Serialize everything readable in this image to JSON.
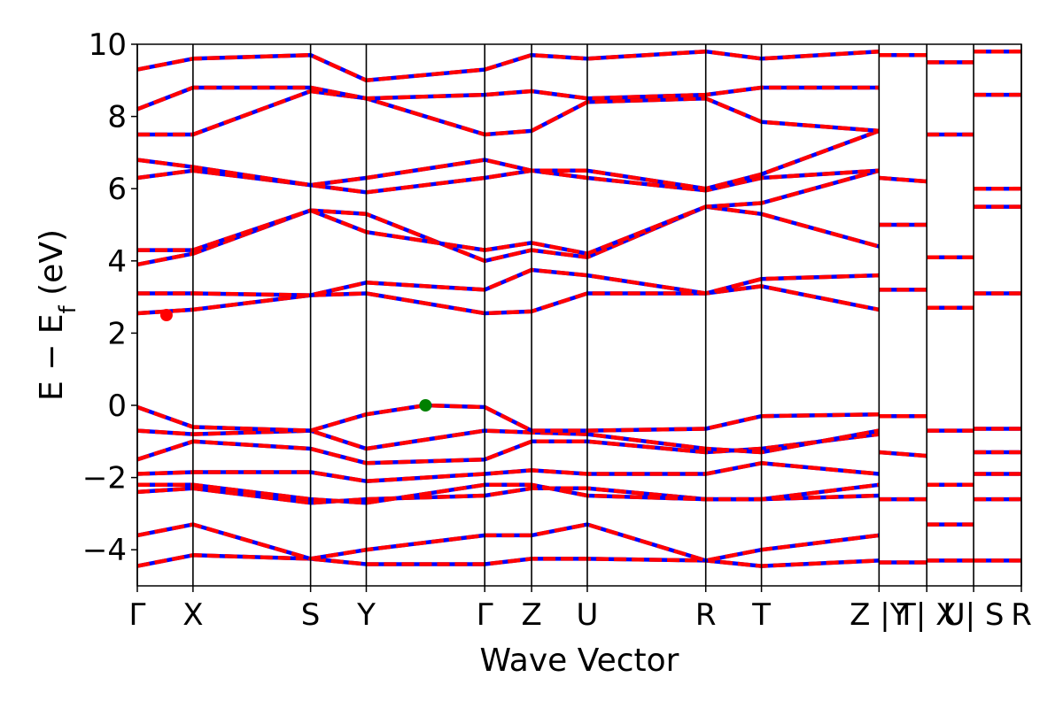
{
  "chart_data": {
    "type": "line",
    "xlabel": "Wave Vector",
    "ylabel": "E − E",
    "ylabel_sub": "f",
    "ylabel_unit": " (eV)",
    "ylim": [
      -5,
      10
    ],
    "yticks": [
      -4,
      -2,
      0,
      2,
      4,
      6,
      8,
      10
    ],
    "ytick_labels": [
      "−4",
      "−2",
      "0",
      "2",
      "4",
      "6",
      "8",
      "10"
    ],
    "xlim": [
      0,
      1
    ],
    "kpoints": [
      {
        "pos": 0.0,
        "label": "Γ"
      },
      {
        "pos": 0.063,
        "label": "X"
      },
      {
        "pos": 0.196,
        "label": "S"
      },
      {
        "pos": 0.259,
        "label": "Y"
      },
      {
        "pos": 0.393,
        "label": "Γ"
      },
      {
        "pos": 0.446,
        "label": "Z"
      },
      {
        "pos": 0.509,
        "label": "U"
      },
      {
        "pos": 0.643,
        "label": "R"
      },
      {
        "pos": 0.706,
        "label": "T"
      },
      {
        "pos": 0.839,
        "label": "Z |Y"
      },
      {
        "pos": 0.893,
        "label": "T| X"
      },
      {
        "pos": 0.946,
        "label": "U| S"
      },
      {
        "pos": 1.0,
        "label": "R"
      }
    ],
    "cbm": {
      "x": 0.033,
      "y": 2.5,
      "color": "#ff0000"
    },
    "vbm": {
      "x": 0.326,
      "y": 0.0,
      "color": "#008000"
    },
    "bands": [
      {
        "x": [
          0,
          0.063,
          0.196,
          0.259,
          0.393,
          0.446,
          0.509,
          0.643,
          0.706,
          0.839
        ],
        "y": [
          -4.45,
          -4.15,
          -4.25,
          -4.4,
          -4.4,
          -4.25,
          -4.25,
          -4.3,
          -4.45,
          -4.3
        ]
      },
      {
        "x": [
          0,
          0.063,
          0.196,
          0.259,
          0.393,
          0.446,
          0.509,
          0.643,
          0.706,
          0.839
        ],
        "y": [
          -3.6,
          -3.3,
          -4.25,
          -4.0,
          -3.6,
          -3.6,
          -3.3,
          -4.3,
          -4.0,
          -3.6
        ]
      },
      {
        "x": [
          0,
          0.063,
          0.196,
          0.259,
          0.393,
          0.446,
          0.509,
          0.643,
          0.706,
          0.839
        ],
        "y": [
          -2.4,
          -2.3,
          -2.7,
          -2.6,
          -2.5,
          -2.3,
          -2.3,
          -2.6,
          -2.6,
          -2.5
        ]
      },
      {
        "x": [
          0,
          0.063,
          0.196,
          0.259,
          0.393,
          0.446,
          0.509,
          0.643,
          0.706,
          0.839
        ],
        "y": [
          -2.2,
          -2.2,
          -2.6,
          -2.7,
          -2.2,
          -2.2,
          -2.5,
          -2.6,
          -2.6,
          -2.2
        ]
      },
      {
        "x": [
          0,
          0.063,
          0.196,
          0.259,
          0.393,
          0.446,
          0.509,
          0.643,
          0.706,
          0.839
        ],
        "y": [
          -1.9,
          -1.85,
          -1.85,
          -2.1,
          -1.9,
          -1.8,
          -1.9,
          -1.9,
          -1.6,
          -1.9
        ]
      },
      {
        "x": [
          0,
          0.063,
          0.196,
          0.259,
          0.393,
          0.446,
          0.509,
          0.643,
          0.706,
          0.839
        ],
        "y": [
          -1.5,
          -1.0,
          -1.2,
          -1.6,
          -1.5,
          -1.0,
          -1.0,
          -1.3,
          -1.2,
          -0.8
        ]
      },
      {
        "x": [
          0,
          0.063,
          0.196,
          0.259,
          0.393,
          0.446,
          0.509,
          0.643,
          0.706,
          0.839
        ],
        "y": [
          -0.7,
          -0.8,
          -0.7,
          -1.2,
          -0.7,
          -0.75,
          -0.8,
          -1.2,
          -1.3,
          -0.7
        ]
      },
      {
        "x": [
          0,
          0.063,
          0.196,
          0.259,
          0.326,
          0.393,
          0.446,
          0.509,
          0.643,
          0.706,
          0.839
        ],
        "y": [
          -0.05,
          -0.6,
          -0.7,
          -0.25,
          0.0,
          -0.05,
          -0.7,
          -0.7,
          -0.65,
          -0.3,
          -0.25
        ]
      },
      {
        "x": [
          0,
          0.063,
          0.196,
          0.259,
          0.393,
          0.446,
          0.509,
          0.643,
          0.706,
          0.839
        ],
        "y": [
          2.55,
          2.65,
          3.05,
          3.1,
          2.55,
          2.6,
          3.1,
          3.1,
          3.3,
          2.65
        ]
      },
      {
        "x": [
          0,
          0.063,
          0.196,
          0.259,
          0.393,
          0.446,
          0.509,
          0.643,
          0.706,
          0.839
        ],
        "y": [
          3.1,
          3.1,
          3.05,
          3.4,
          3.2,
          3.75,
          3.6,
          3.1,
          3.5,
          3.6
        ]
      },
      {
        "x": [
          0,
          0.063,
          0.196,
          0.259,
          0.393,
          0.446,
          0.509,
          0.643,
          0.706,
          0.839
        ],
        "y": [
          3.9,
          4.2,
          5.4,
          5.3,
          4.0,
          4.3,
          4.1,
          5.5,
          5.3,
          4.4
        ]
      },
      {
        "x": [
          0,
          0.063,
          0.196,
          0.259,
          0.393,
          0.446,
          0.509,
          0.643,
          0.706,
          0.839
        ],
        "y": [
          4.3,
          4.3,
          5.4,
          4.8,
          4.3,
          4.5,
          4.2,
          5.5,
          5.6,
          6.5
        ]
      },
      {
        "x": [
          0,
          0.063,
          0.196,
          0.259,
          0.393,
          0.446,
          0.509,
          0.643,
          0.706,
          0.839
        ],
        "y": [
          6.3,
          6.5,
          6.1,
          5.9,
          6.3,
          6.5,
          6.3,
          5.95,
          6.3,
          6.5
        ]
      },
      {
        "x": [
          0,
          0.063,
          0.196,
          0.259,
          0.393,
          0.446,
          0.509,
          0.643,
          0.706,
          0.839
        ],
        "y": [
          6.8,
          6.6,
          6.1,
          6.3,
          6.8,
          6.5,
          6.5,
          6.0,
          6.4,
          7.6
        ]
      },
      {
        "x": [
          0,
          0.063,
          0.196,
          0.259,
          0.393,
          0.446,
          0.509,
          0.643,
          0.706,
          0.839
        ],
        "y": [
          7.5,
          7.5,
          8.7,
          8.5,
          7.5,
          7.6,
          8.4,
          8.5,
          7.85,
          7.6
        ]
      },
      {
        "x": [
          0,
          0.063,
          0.196,
          0.259,
          0.393,
          0.446,
          0.509,
          0.643,
          0.706,
          0.839
        ],
        "y": [
          8.2,
          8.8,
          8.8,
          8.5,
          8.6,
          8.7,
          8.5,
          8.6,
          8.8,
          8.8
        ]
      },
      {
        "x": [
          0,
          0.063,
          0.196,
          0.259,
          0.393,
          0.446,
          0.509,
          0.643,
          0.706,
          0.839
        ],
        "y": [
          9.3,
          9.6,
          9.7,
          9.0,
          9.3,
          9.7,
          9.6,
          9.8,
          9.6,
          9.8
        ]
      }
    ],
    "segment_bands": [
      {
        "x": [
          0.839,
          0.893
        ],
        "y": [
          -4.35,
          -4.35
        ]
      },
      {
        "x": [
          0.839,
          0.893
        ],
        "y": [
          -2.6,
          -2.6
        ]
      },
      {
        "x": [
          0.839,
          0.893
        ],
        "y": [
          -1.3,
          -1.4
        ]
      },
      {
        "x": [
          0.839,
          0.893
        ],
        "y": [
          -0.3,
          -0.3
        ]
      },
      {
        "x": [
          0.839,
          0.893
        ],
        "y": [
          3.2,
          3.2
        ]
      },
      {
        "x": [
          0.839,
          0.893
        ],
        "y": [
          5.0,
          5.0
        ]
      },
      {
        "x": [
          0.839,
          0.893
        ],
        "y": [
          6.3,
          6.2
        ]
      },
      {
        "x": [
          0.839,
          0.893
        ],
        "y": [
          9.7,
          9.7
        ]
      },
      {
        "x": [
          0.893,
          0.946
        ],
        "y": [
          -4.3,
          -4.3
        ]
      },
      {
        "x": [
          0.893,
          0.946
        ],
        "y": [
          -3.3,
          -3.3
        ]
      },
      {
        "x": [
          0.893,
          0.946
        ],
        "y": [
          -2.2,
          -2.2
        ]
      },
      {
        "x": [
          0.893,
          0.946
        ],
        "y": [
          -0.7,
          -0.7
        ]
      },
      {
        "x": [
          0.893,
          0.946
        ],
        "y": [
          2.7,
          2.7
        ]
      },
      {
        "x": [
          0.893,
          0.946
        ],
        "y": [
          4.1,
          4.1
        ]
      },
      {
        "x": [
          0.893,
          0.946
        ],
        "y": [
          7.5,
          7.5
        ]
      },
      {
        "x": [
          0.893,
          0.946
        ],
        "y": [
          9.5,
          9.5
        ]
      },
      {
        "x": [
          0.946,
          1.0
        ],
        "y": [
          -4.3,
          -4.3
        ]
      },
      {
        "x": [
          0.946,
          1.0
        ],
        "y": [
          -2.6,
          -2.6
        ]
      },
      {
        "x": [
          0.946,
          1.0
        ],
        "y": [
          -1.9,
          -1.9
        ]
      },
      {
        "x": [
          0.946,
          1.0
        ],
        "y": [
          -1.3,
          -1.3
        ]
      },
      {
        "x": [
          0.946,
          1.0
        ],
        "y": [
          -0.65,
          -0.65
        ]
      },
      {
        "x": [
          0.946,
          1.0
        ],
        "y": [
          3.1,
          3.1
        ]
      },
      {
        "x": [
          0.946,
          1.0
        ],
        "y": [
          5.5,
          5.5
        ]
      },
      {
        "x": [
          0.946,
          1.0
        ],
        "y": [
          6.0,
          6.0
        ]
      },
      {
        "x": [
          0.946,
          1.0
        ],
        "y": [
          8.6,
          8.6
        ]
      },
      {
        "x": [
          0.946,
          1.0
        ],
        "y": [
          9.8,
          9.8
        ]
      }
    ],
    "colors": {
      "band_primary": "#ff0000",
      "band_secondary": "#0000ff",
      "axis": "#000000",
      "background": "#ffffff"
    },
    "grid": false
  }
}
